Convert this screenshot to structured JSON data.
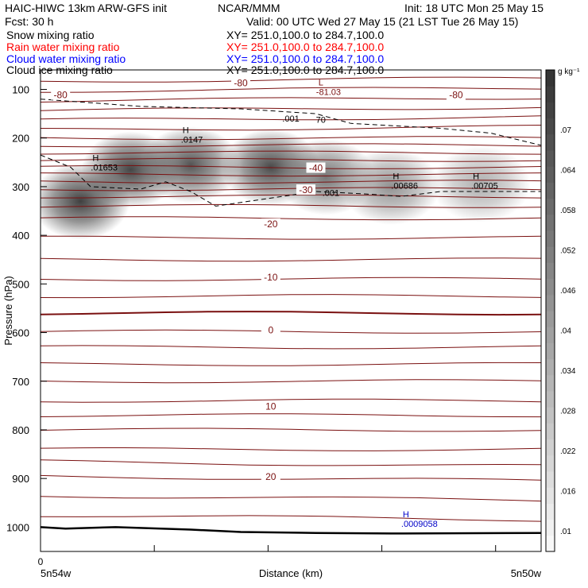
{
  "header": {
    "line1_left": "HAIC-HIWC 13km ARW-GFS init",
    "line1_mid": "NCAR/MMM",
    "line1_right": "Init: 18 UTC Mon 25 May 15",
    "line2_left": "Fcst:   30 h",
    "line2_right": "Valid: 00 UTC Wed 27 May 15 (21 LST Tue 26 May 15)"
  },
  "fields": [
    {
      "label": "Snow mixing ratio",
      "xy": "XY= 251.0,100.0 to 284.7,100.0",
      "color": "#000000"
    },
    {
      "label": "Rain water mixing ratio",
      "xy": "XY= 251.0,100.0 to 284.7,100.0",
      "color": "#ff0000"
    },
    {
      "label": "Cloud water mixing ratio",
      "xy": "XY= 251.0,100.0 to 284.7,100.0",
      "color": "#0000ff"
    },
    {
      "label": "Cloud ice mixing ratio",
      "xy": "XY= 251.0,100.0 to 284.7,100.0",
      "color": "#000000"
    }
  ],
  "colors": {
    "temperature_contour": "#7a1010",
    "dashed_contour": "#000000",
    "cloud_water_label": "#0000c8",
    "shading_max": "#3a3a3a"
  },
  "chart_data": {
    "type": "heatmap",
    "title": "",
    "xlabel": "Distance (km)",
    "ylabel": "Pressure (hPa)",
    "x_ticks": [
      "0"
    ],
    "x_endpoints": {
      "left": "5n54w",
      "right": "5n50w"
    },
    "y_scale": "linear",
    "ylim": [
      1050,
      60
    ],
    "y_ticks": [
      100,
      200,
      300,
      400,
      500,
      600,
      700,
      800,
      900,
      1000
    ],
    "colorbar": {
      "unit": "g kg⁻¹",
      "ticks": [
        ".01",
        ".016",
        ".022",
        ".028",
        ".034",
        ".04",
        ".046",
        ".052",
        ".058",
        ".064",
        ".07"
      ],
      "range": [
        0.007,
        0.075
      ]
    },
    "temperature_contour_labels": [
      {
        "text": "-80",
        "x": 0.04,
        "p": 115
      },
      {
        "text": "-80",
        "x": 0.4,
        "p": 90
      },
      {
        "text": "-80",
        "x": 0.83,
        "p": 115
      },
      {
        "text": "-40",
        "x": 0.55,
        "p": 265
      },
      {
        "text": "-30",
        "x": 0.53,
        "p": 310
      },
      {
        "text": "-20",
        "x": 0.46,
        "p": 380
      },
      {
        "text": "-10",
        "x": 0.46,
        "p": 490
      },
      {
        "text": "0",
        "x": 0.46,
        "p": 598
      },
      {
        "text": "10",
        "x": 0.46,
        "p": 755
      },
      {
        "text": "20",
        "x": 0.46,
        "p": 900
      }
    ],
    "dashed_contour_labels": [
      {
        "text": ".001",
        "x": 0.5,
        "p": 160
      },
      {
        "text": "70",
        "x": 0.56,
        "p": 162
      },
      {
        "text": ".001",
        "x": 0.58,
        "p": 312
      }
    ],
    "extrema": [
      {
        "type": "L",
        "value": "-81.03",
        "x": 0.56,
        "p": 95,
        "color": "#7a1010"
      },
      {
        "type": "H",
        "value": ".01653",
        "x": 0.11,
        "p": 250,
        "color": "#000000"
      },
      {
        "type": "H",
        "value": ".0147",
        "x": 0.29,
        "p": 193,
        "color": "#000000"
      },
      {
        "type": "H",
        "value": ".00686",
        "x": 0.71,
        "p": 288,
        "color": "#000000"
      },
      {
        "type": "H",
        "value": ".00705",
        "x": 0.87,
        "p": 288,
        "color": "#000000"
      },
      {
        "type": "H",
        "value": ".0009058",
        "x": 0.73,
        "p": 983,
        "color": "#0000c8"
      }
    ],
    "shaded_blobs": [
      {
        "x": 0.08,
        "p": 330,
        "value": 0.07
      },
      {
        "x": 0.18,
        "p": 265,
        "value": 0.068
      },
      {
        "x": 0.3,
        "p": 255,
        "value": 0.062
      },
      {
        "x": 0.46,
        "p": 260,
        "value": 0.066
      },
      {
        "x": 0.57,
        "p": 280,
        "value": 0.05
      },
      {
        "x": 0.7,
        "p": 300,
        "value": 0.04
      },
      {
        "x": 0.88,
        "p": 295,
        "value": 0.03
      }
    ],
    "dashed_line_001_upper": [
      [
        0.0,
        120
      ],
      [
        0.2,
        135
      ],
      [
        0.4,
        140
      ],
      [
        0.55,
        150
      ],
      [
        0.62,
        170
      ],
      [
        0.8,
        180
      ],
      [
        0.9,
        190
      ],
      [
        1.0,
        215
      ]
    ],
    "dashed_line_001_lower": [
      [
        0.0,
        235
      ],
      [
        0.06,
        260
      ],
      [
        0.1,
        300
      ],
      [
        0.2,
        305
      ],
      [
        0.25,
        290
      ],
      [
        0.3,
        310
      ],
      [
        0.35,
        340
      ],
      [
        0.45,
        325
      ],
      [
        0.55,
        310
      ],
      [
        0.65,
        315
      ],
      [
        0.72,
        320
      ],
      [
        0.8,
        310
      ],
      [
        1.0,
        310
      ]
    ],
    "ground_line": [
      [
        0.0,
        1000
      ],
      [
        0.05,
        1003
      ],
      [
        0.15,
        1000
      ],
      [
        0.3,
        1005
      ],
      [
        0.4,
        1010
      ],
      [
        0.55,
        1012
      ],
      [
        0.7,
        1013
      ],
      [
        1.0,
        1012
      ]
    ]
  }
}
